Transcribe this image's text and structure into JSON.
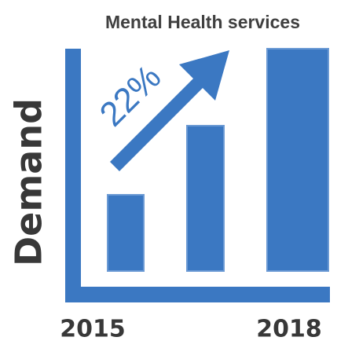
{
  "title": "Mental Health services",
  "axis_label": "Demand",
  "growth_label": "22%",
  "start_year": "2015",
  "end_year": "2018"
}
